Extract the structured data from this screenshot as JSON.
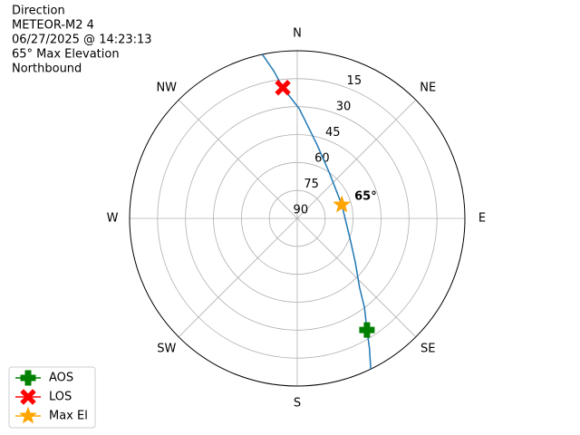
{
  "chart_data": {
    "type": "polar",
    "title_lines": [
      "Direction",
      "METEOR-M2 4",
      "06/27/2025 @ 14:23:13",
      "65° Max Elevation",
      "Northbound"
    ],
    "theta_ticks": [
      {
        "value": 0,
        "label": "N"
      },
      {
        "value": 45,
        "label": "NE"
      },
      {
        "value": 90,
        "label": "E"
      },
      {
        "value": 135,
        "label": "SE"
      },
      {
        "value": 180,
        "label": "S"
      },
      {
        "value": 225,
        "label": "SW"
      },
      {
        "value": 270,
        "label": "W"
      },
      {
        "value": 315,
        "label": "NW"
      }
    ],
    "rlim": [
      90,
      0
    ],
    "rticks": [
      15,
      30,
      45,
      60,
      75,
      90
    ],
    "grid": true,
    "track": {
      "color": "#1f77b4",
      "azimuth": [
        348,
        351,
        353.7,
        1,
        15,
        35,
        73,
        110,
        127,
        138,
        143,
        148,
        151,
        154
      ],
      "elevation": [
        0,
        10,
        19.4,
        31,
        49,
        60,
        65,
        60,
        51,
        40,
        30,
        19.4,
        10,
        0
      ]
    },
    "markers": [
      {
        "name": "AOS",
        "color": "green",
        "marker": "plus",
        "azimuth": 148,
        "elevation": 19.4
      },
      {
        "name": "LOS",
        "color": "red",
        "marker": "x",
        "azimuth": 353.7,
        "elevation": 19.4
      },
      {
        "name": "Max El",
        "color": "orange",
        "marker": "star",
        "azimuth": 73,
        "elevation": 65,
        "value_label": "65°"
      }
    ],
    "legend": "lower left"
  }
}
